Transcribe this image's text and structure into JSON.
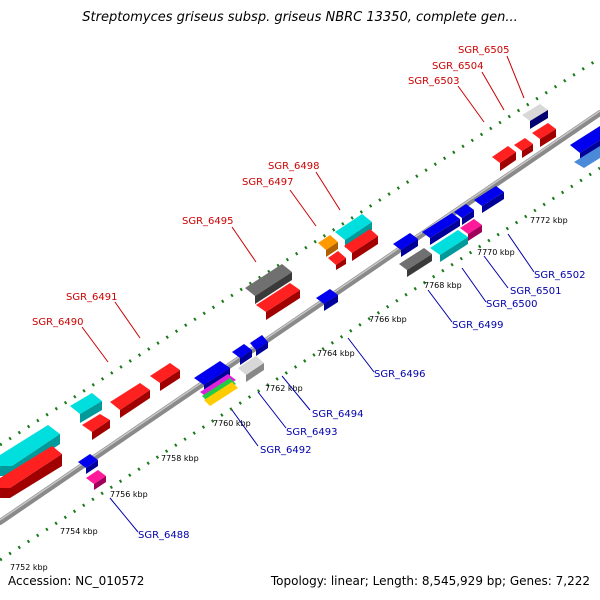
{
  "title": "Streptomyces griseus subsp. griseus NBRC 13350, complete gen...",
  "footer": {
    "accession": "Accession: NC_010572",
    "summary": "Topology: linear; Length: 8,545,929 bp; Genes: 7,222"
  },
  "colors": {
    "backbone": "#8a8a8a",
    "forward_label": "#cc0000",
    "reverse_label": "#0000aa",
    "tick_dots": "#1a7a1a"
  },
  "kbp_labels": [
    "7752 kbp",
    "7754 kbp",
    "7756 kbp",
    "7758 kbp",
    "7760 kbp",
    "7762 kbp",
    "7764 kbp",
    "7766 kbp",
    "7768 kbp",
    "7770 kbp",
    "7772 kbp"
  ],
  "top_labels": [
    "SGR_6490",
    "SGR_6491",
    "SGR_6495",
    "SGR_6497",
    "SGR_6498",
    "SGR_6503",
    "SGR_6504",
    "SGR_6505"
  ],
  "bottom_labels": [
    "SGR_6488",
    "SGR_6492",
    "SGR_6493",
    "SGR_6494",
    "SGR_6496",
    "SGR_6499",
    "SGR_6500",
    "SGR_6501",
    "SGR_6502"
  ]
}
